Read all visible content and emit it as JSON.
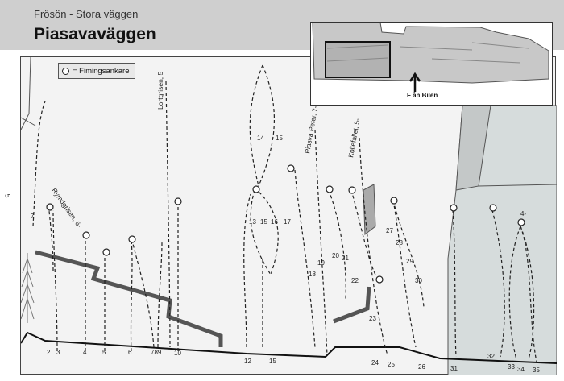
{
  "header": {
    "subtitle": "Frösön - Stora väggen",
    "title": "Piasavaväggen"
  },
  "legend": {
    "label": "= Fimingsankare"
  },
  "side_grade": "5",
  "inset": {
    "label": "F ån Bilen"
  },
  "route_names": [
    "Rymdgrisen, 6-",
    "Lortgrisen, 5",
    "Piasva Peter, 7-",
    "Kollefallet, 5-"
  ],
  "bottom_numbers": [
    "2",
    "3",
    "4",
    "5",
    "6",
    "789",
    "10",
    "12",
    "15",
    "24",
    "25",
    "26",
    "31",
    "32",
    "33",
    "34",
    "35"
  ],
  "wall_numbers": [
    "7",
    "14",
    "15",
    "13",
    "15",
    "16",
    "17",
    "18",
    "19",
    "20",
    "21",
    "22",
    "23",
    "27",
    "28",
    "29",
    "30",
    "4-"
  ],
  "colors": {
    "header": "#cfcfcf",
    "wall": "#f3f3f3",
    "slab": "#bfbfbf",
    "ledge": "#777777",
    "line": "#222222"
  }
}
